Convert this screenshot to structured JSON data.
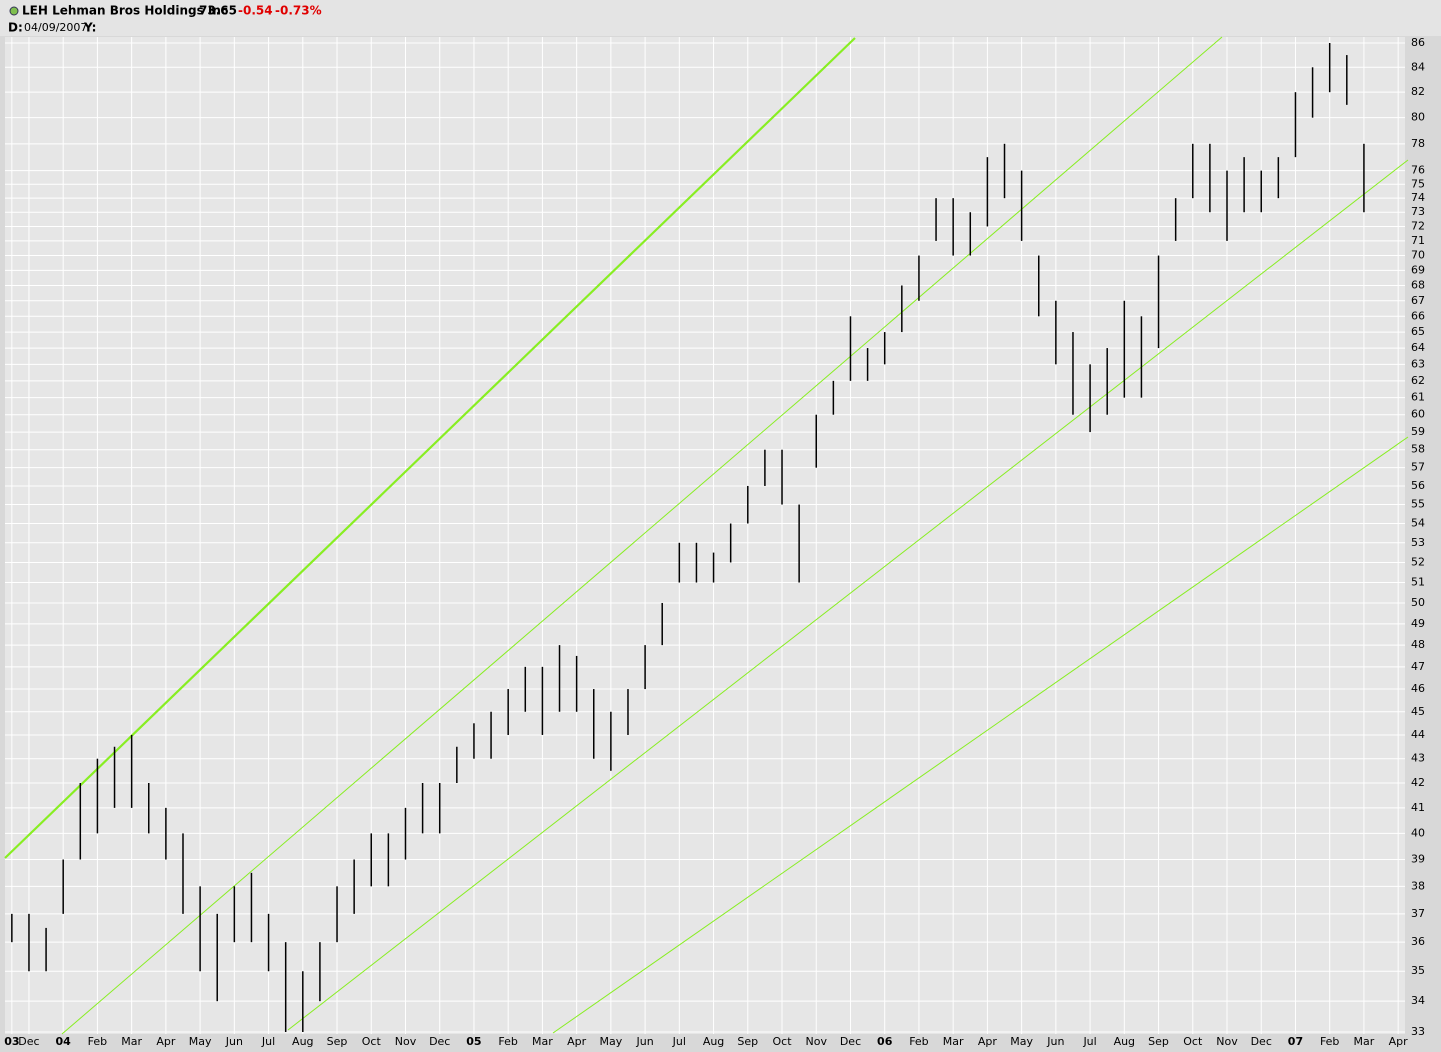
{
  "header": {
    "symbol": "LEH Lehman Bros Holdings Inc",
    "price": "73.65",
    "change": "-0.54",
    "change_pct": "-0.73%",
    "date_key": "D:",
    "date": "04/09/2007",
    "y_key": "Y:"
  },
  "chart_data": {
    "type": "rangebar",
    "log_y": true,
    "grid": true,
    "x": [
      -0.5,
      0,
      0.5,
      1,
      1.5,
      2,
      2.5,
      3,
      3.5,
      4,
      4.5,
      5,
      5.5,
      6,
      6.5,
      7,
      7.5,
      8,
      8.5,
      9,
      9.5,
      10,
      10.5,
      11,
      11.5,
      12,
      12.5,
      13,
      13.5,
      14,
      14.5,
      15,
      15.5,
      16,
      16.5,
      17,
      17.5,
      18,
      18.5,
      19,
      19.5,
      20,
      20.5,
      21,
      21.5,
      22,
      22.5,
      23,
      23.5,
      24,
      24.5,
      25,
      25.5,
      26,
      26.5,
      27,
      27.5,
      28,
      28.5,
      29,
      29.5,
      30,
      30.5,
      31,
      31.5,
      32,
      32.5,
      33,
      33.5,
      34,
      34.5,
      35,
      35.5,
      36,
      36.5,
      37,
      37.5,
      38,
      38.5,
      39
    ],
    "series": [
      {
        "color": "#000000",
        "values": [
          37,
          37,
          36.5,
          39,
          42,
          43,
          43.5,
          44,
          42,
          41,
          40,
          38,
          37,
          38,
          38.5,
          37,
          36,
          35,
          36,
          38,
          39,
          40,
          40,
          41,
          42,
          42,
          43.5,
          44.5,
          45,
          46,
          47,
          47,
          48,
          47.5,
          46,
          45,
          46,
          48,
          50,
          53,
          53,
          52.5,
          54,
          56,
          58,
          58,
          55,
          60,
          62,
          66,
          64,
          65,
          68,
          70,
          74,
          74,
          73,
          77,
          78,
          76,
          70,
          67,
          65,
          63,
          64,
          67,
          66,
          70,
          74,
          78,
          78,
          76,
          77,
          76,
          77,
          82,
          84,
          86,
          85,
          78
        ]
      },
      {
        "color": "#000000",
        "values": [
          36,
          35,
          35,
          37,
          39,
          40,
          41,
          41,
          40,
          39,
          37,
          35,
          34,
          36,
          36,
          35,
          33,
          33,
          34,
          36,
          37,
          38,
          38,
          39,
          40,
          40,
          42,
          43,
          43,
          44,
          45,
          44,
          45,
          45,
          43,
          42.5,
          44,
          46,
          48,
          51,
          51,
          51,
          52,
          54,
          56,
          55,
          51,
          57,
          60,
          62,
          62,
          63,
          65,
          67,
          71,
          70,
          70,
          72,
          74,
          71,
          66,
          63,
          60,
          59,
          60,
          61,
          61,
          64,
          71,
          74,
          73,
          71,
          73,
          73,
          74,
          77,
          80,
          82,
          81,
          73
        ]
      }
    ],
    "xlim": [
      -0.7,
      40.2
    ],
    "xticks": [
      {
        "value": -0.5,
        "label": "03"
      },
      {
        "value": 0,
        "label": "Dec"
      },
      {
        "value": 1,
        "label": "04"
      },
      {
        "value": 2,
        "label": "Feb"
      },
      {
        "value": 3,
        "label": "Mar"
      },
      {
        "value": 4,
        "label": "Apr"
      },
      {
        "value": 5,
        "label": "May"
      },
      {
        "value": 6,
        "label": "Jun"
      },
      {
        "value": 7,
        "label": "Jul"
      },
      {
        "value": 8,
        "label": "Aug"
      },
      {
        "value": 9,
        "label": "Sep"
      },
      {
        "value": 10,
        "label": "Oct"
      },
      {
        "value": 11,
        "label": "Nov"
      },
      {
        "value": 12,
        "label": "Dec"
      },
      {
        "value": 13,
        "label": "05"
      },
      {
        "value": 14,
        "label": "Feb"
      },
      {
        "value": 15,
        "label": "Mar"
      },
      {
        "value": 16,
        "label": "Apr"
      },
      {
        "value": 17,
        "label": "May"
      },
      {
        "value": 18,
        "label": "Jun"
      },
      {
        "value": 19,
        "label": "Jul"
      },
      {
        "value": 20,
        "label": "Aug"
      },
      {
        "value": 21,
        "label": "Sep"
      },
      {
        "value": 22,
        "label": "Oct"
      },
      {
        "value": 23,
        "label": "Nov"
      },
      {
        "value": 24,
        "label": "Dec"
      },
      {
        "value": 25,
        "label": "06"
      },
      {
        "value": 26,
        "label": "Feb"
      },
      {
        "value": 27,
        "label": "Mar"
      },
      {
        "value": 28,
        "label": "Apr"
      },
      {
        "value": 29,
        "label": "May"
      },
      {
        "value": 30,
        "label": "Jun"
      },
      {
        "value": 31,
        "label": "Jul"
      },
      {
        "value": 32,
        "label": "Aug"
      },
      {
        "value": 33,
        "label": "Sep"
      },
      {
        "value": 34,
        "label": "Oct"
      },
      {
        "value": 35,
        "label": "Nov"
      },
      {
        "value": 36,
        "label": "Dec"
      },
      {
        "value": 37,
        "label": "07"
      },
      {
        "value": 38,
        "label": "Feb"
      },
      {
        "value": 39,
        "label": "Mar"
      },
      {
        "value": 40,
        "label": "Apr"
      }
    ],
    "ylim": [
      33,
      86
    ],
    "yticks": [
      33,
      34,
      35,
      36,
      37,
      38,
      39,
      40,
      41,
      42,
      43,
      44,
      45,
      46,
      47,
      48,
      49,
      50,
      51,
      52,
      53,
      54,
      55,
      56,
      57,
      58,
      59,
      60,
      61,
      62,
      63,
      64,
      65,
      66,
      67,
      68,
      69,
      70,
      71,
      72,
      73,
      74,
      75,
      76,
      78,
      80,
      82,
      84,
      86
    ]
  }
}
